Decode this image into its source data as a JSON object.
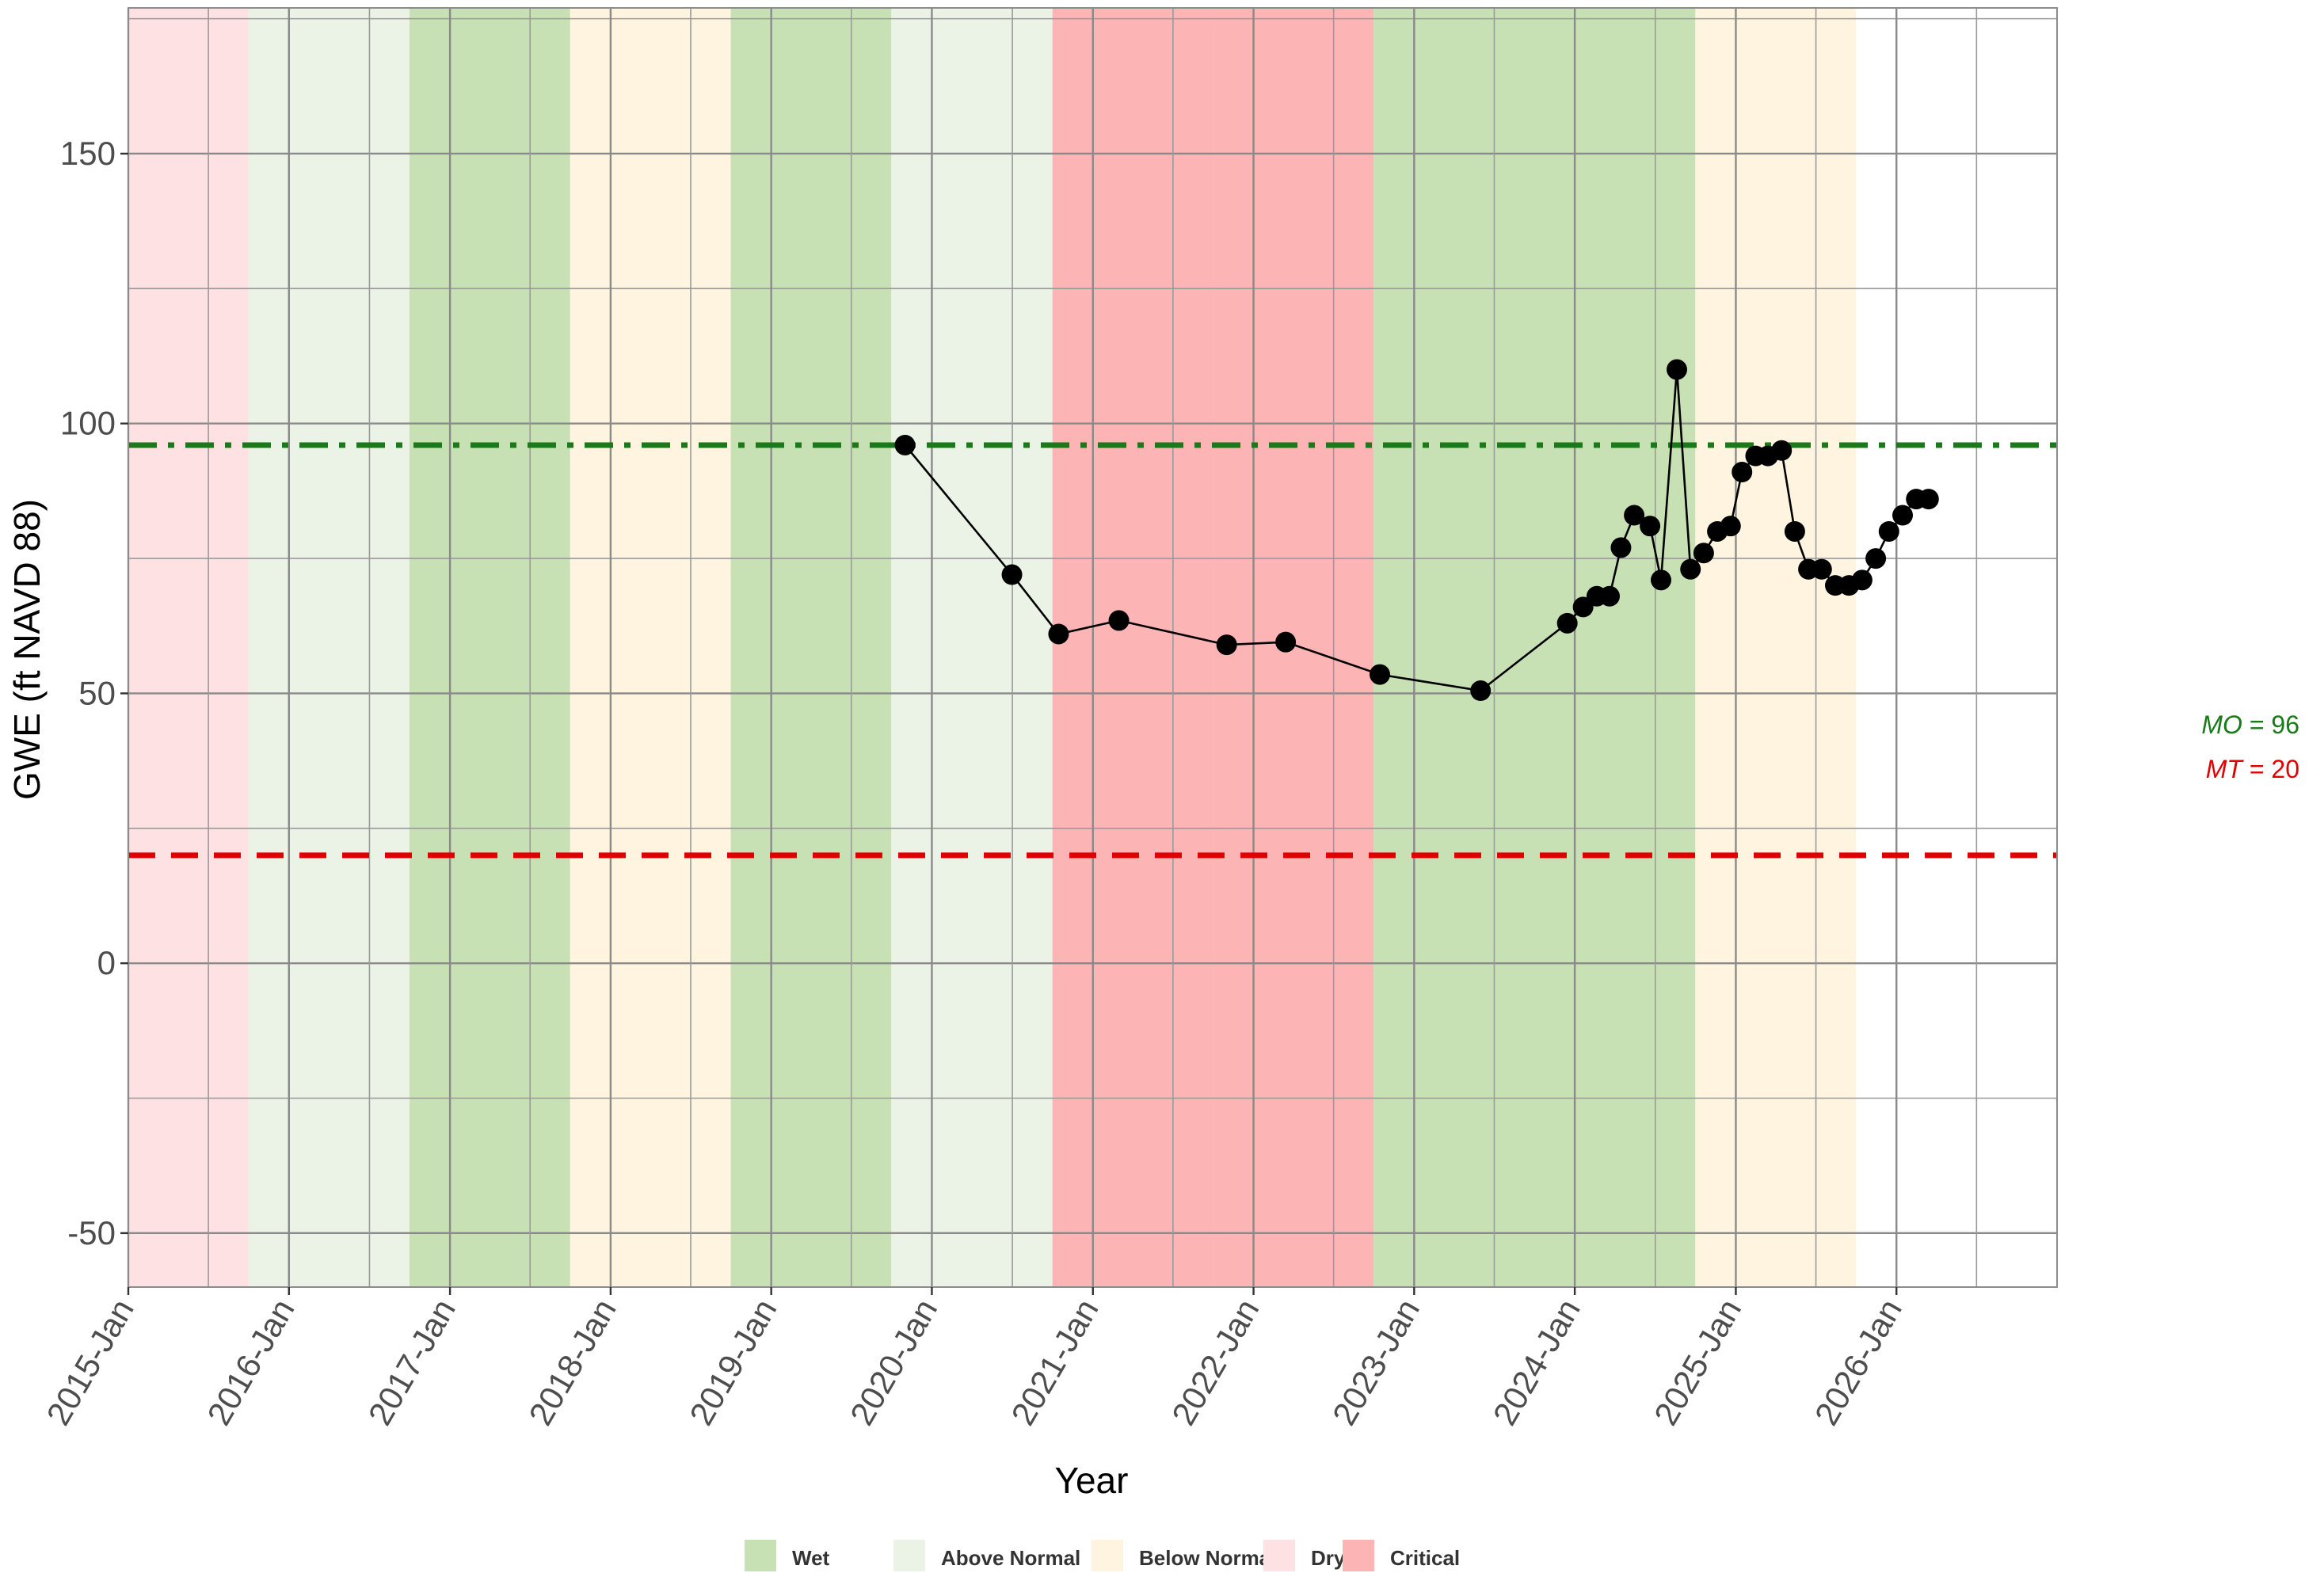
{
  "chart_data": {
    "type": "line",
    "xlabel": "Year",
    "ylabel": "GWE (ft NAVD 88)",
    "ylim": [
      -60,
      177
    ],
    "y_ticks": [
      -50,
      0,
      50,
      100,
      150
    ],
    "x_ticks": [
      "2015-Jan",
      "2016-Jan",
      "2017-Jan",
      "2018-Jan",
      "2019-Jan",
      "2020-Jan",
      "2021-Jan",
      "2022-Jan",
      "2023-Jan",
      "2024-Jan",
      "2025-Jan",
      "2026-Jan"
    ],
    "xlim": [
      "2015-01-01",
      "2027-01-01"
    ],
    "grid": true,
    "series": [
      {
        "marker": "circle",
        "color": "#000000",
        "points": [
          {
            "date": "2019-11-01",
            "y": 96
          },
          {
            "date": "2020-07-01",
            "y": 72
          },
          {
            "date": "2020-10-15",
            "y": 61
          },
          {
            "date": "2021-03-01",
            "y": 63.5
          },
          {
            "date": "2021-11-01",
            "y": 59
          },
          {
            "date": "2022-03-15",
            "y": 59.5
          },
          {
            "date": "2022-10-15",
            "y": 53.5
          },
          {
            "date": "2023-06-01",
            "y": 50.5
          },
          {
            "date": "2023-12-15",
            "y": 63
          },
          {
            "date": "2024-01-20",
            "y": 66
          },
          {
            "date": "2024-02-20",
            "y": 68
          },
          {
            "date": "2024-03-20",
            "y": 68
          },
          {
            "date": "2024-04-15",
            "y": 77
          },
          {
            "date": "2024-05-15",
            "y": 83
          },
          {
            "date": "2024-06-20",
            "y": 81
          },
          {
            "date": "2024-07-15",
            "y": 71
          },
          {
            "date": "2024-08-20",
            "y": 110
          },
          {
            "date": "2024-09-20",
            "y": 73
          },
          {
            "date": "2024-10-20",
            "y": 76
          },
          {
            "date": "2024-11-20",
            "y": 80
          },
          {
            "date": "2024-12-20",
            "y": 81
          },
          {
            "date": "2025-01-15",
            "y": 91
          },
          {
            "date": "2025-02-15",
            "y": 94
          },
          {
            "date": "2025-03-15",
            "y": 94
          },
          {
            "date": "2025-04-15",
            "y": 95
          },
          {
            "date": "2025-05-15",
            "y": 80
          },
          {
            "date": "2025-06-15",
            "y": 73
          },
          {
            "date": "2025-07-15",
            "y": 73
          },
          {
            "date": "2025-08-15",
            "y": 70
          },
          {
            "date": "2025-09-15",
            "y": 70
          },
          {
            "date": "2025-10-15",
            "y": 71
          },
          {
            "date": "2025-11-15",
            "y": 75
          },
          {
            "date": "2025-12-15",
            "y": 80
          },
          {
            "date": "2026-01-15",
            "y": 83
          },
          {
            "date": "2026-02-15",
            "y": 86
          },
          {
            "date": "2026-03-15",
            "y": 86
          }
        ]
      }
    ],
    "reference_lines": [
      {
        "label": "MO",
        "value": 96,
        "color": "#1a7a1a",
        "style": "dashdot"
      },
      {
        "label": "MT",
        "value": 20,
        "color": "#e00000",
        "style": "dashed"
      }
    ],
    "water_year_bands": [
      {
        "from": "2014-10-01",
        "to": "2015-10-01",
        "type": "Dry"
      },
      {
        "from": "2015-10-01",
        "to": "2016-10-01",
        "type": "Above Normal"
      },
      {
        "from": "2016-10-01",
        "to": "2017-10-01",
        "type": "Wet"
      },
      {
        "from": "2017-10-01",
        "to": "2018-10-01",
        "type": "Below Normal"
      },
      {
        "from": "2018-10-01",
        "to": "2019-10-01",
        "type": "Wet"
      },
      {
        "from": "2019-10-01",
        "to": "2020-10-01",
        "type": "Above Normal"
      },
      {
        "from": "2020-10-01",
        "to": "2021-10-01",
        "type": "Critical"
      },
      {
        "from": "2021-10-01",
        "to": "2022-10-01",
        "type": "Critical"
      },
      {
        "from": "2022-10-01",
        "to": "2023-10-01",
        "type": "Wet"
      },
      {
        "from": "2023-10-01",
        "to": "2024-10-01",
        "type": "Wet"
      },
      {
        "from": "2024-10-01",
        "to": "2025-10-01",
        "type": "Below Normal"
      }
    ],
    "legend": {
      "placement": "bottom",
      "items": [
        {
          "label": "Wet",
          "color": "#c8e1b4"
        },
        {
          "label": "Above Normal",
          "color": "#ebf3e6"
        },
        {
          "label": "Below Normal",
          "color": "#fff4df"
        },
        {
          "label": "Dry",
          "color": "#fde1e3"
        },
        {
          "label": "Critical",
          "color": "#fcb4b4"
        }
      ]
    },
    "band_colors": {
      "Wet": "#c8e1b4",
      "Above Normal": "#ebf3e6",
      "Below Normal": "#fff4df",
      "Dry": "#fde1e3",
      "Critical": "#fcb4b4"
    }
  },
  "side_labels": {
    "mo": {
      "name": "MO",
      "eq": " = ",
      "value": "96"
    },
    "mt": {
      "name": "MT",
      "eq": " = ",
      "value": "20"
    }
  }
}
